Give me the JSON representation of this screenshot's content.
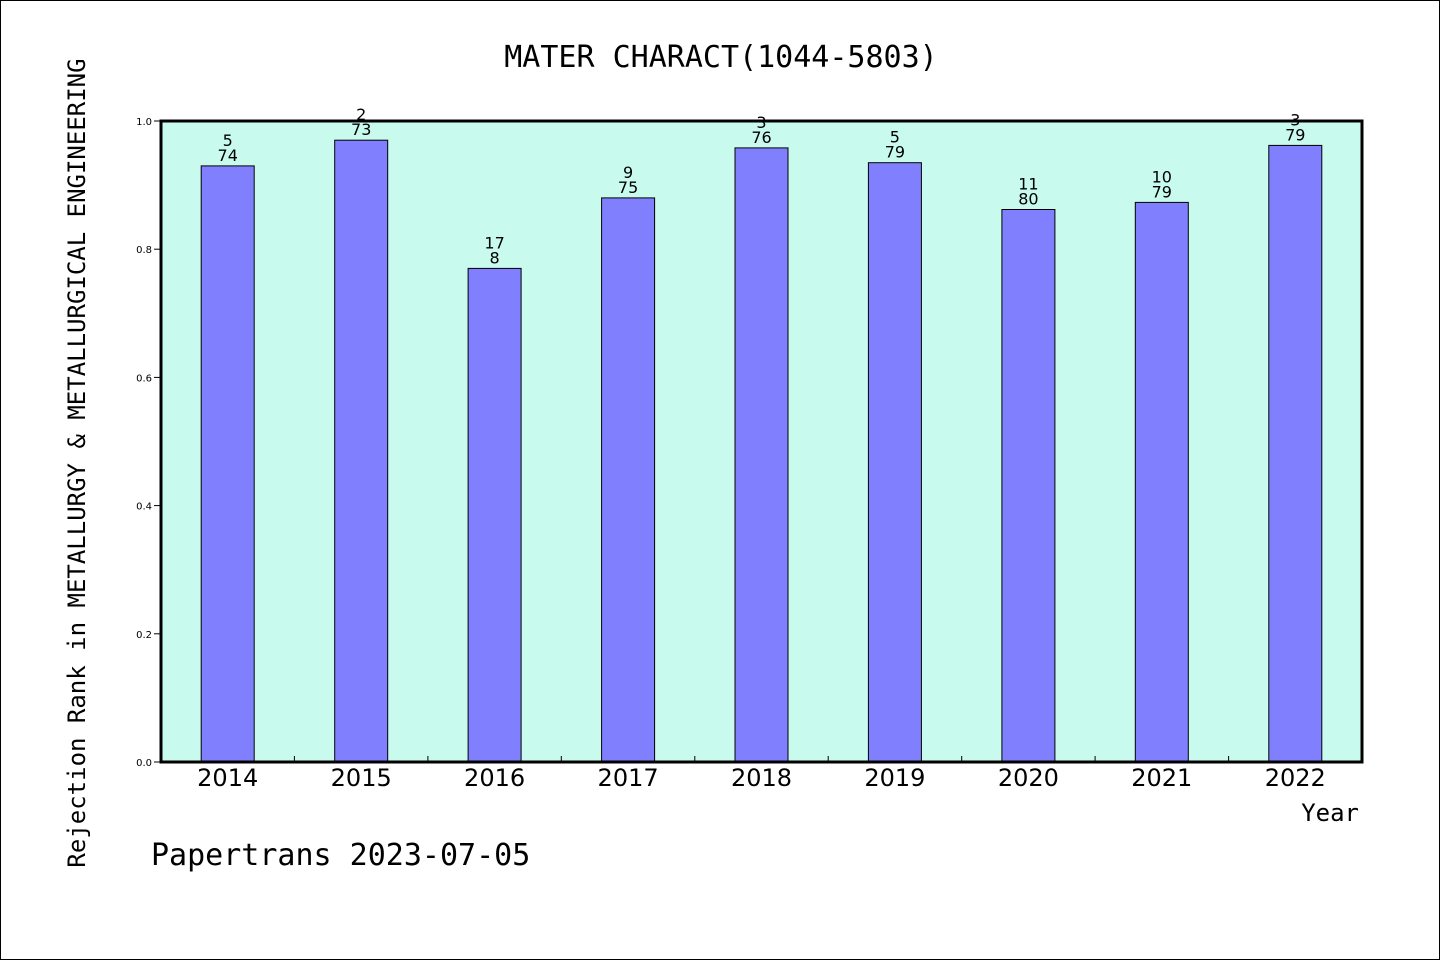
{
  "chart_data": {
    "type": "bar",
    "title": "MATER CHARACT(1044-5803)",
    "xlabel": "Year",
    "ylabel": "Rejection Rank in METALLURGY & METALLURGICAL ENGINEERING",
    "categories": [
      "2014",
      "2015",
      "2016",
      "2017",
      "2018",
      "2019",
      "2020",
      "2021",
      "2022"
    ],
    "values": [
      0.93,
      0.97,
      0.77,
      0.88,
      0.958,
      0.935,
      0.862,
      0.873,
      0.962
    ],
    "bar_labels_top": [
      "5",
      "2",
      "17",
      "9",
      "3",
      "5",
      "11",
      "10",
      "3"
    ],
    "bar_labels_bottom": [
      "74",
      "73",
      "8",
      "75",
      "76",
      "79",
      "80",
      "79",
      "79"
    ],
    "ylim": [
      0.0,
      1.0
    ],
    "yticks": [
      "0.0",
      "0.2",
      "0.4",
      "0.6",
      "0.8",
      "1.0"
    ],
    "ytick_values": [
      0.0,
      0.2,
      0.4,
      0.6,
      0.8,
      1.0
    ],
    "grid": false,
    "colors": {
      "bar_fill": "#8080ff",
      "bar_stroke": "#000000",
      "plot_background": "#c8faee",
      "axes": "#000000"
    }
  },
  "footer": "Papertrans 2023-07-05"
}
